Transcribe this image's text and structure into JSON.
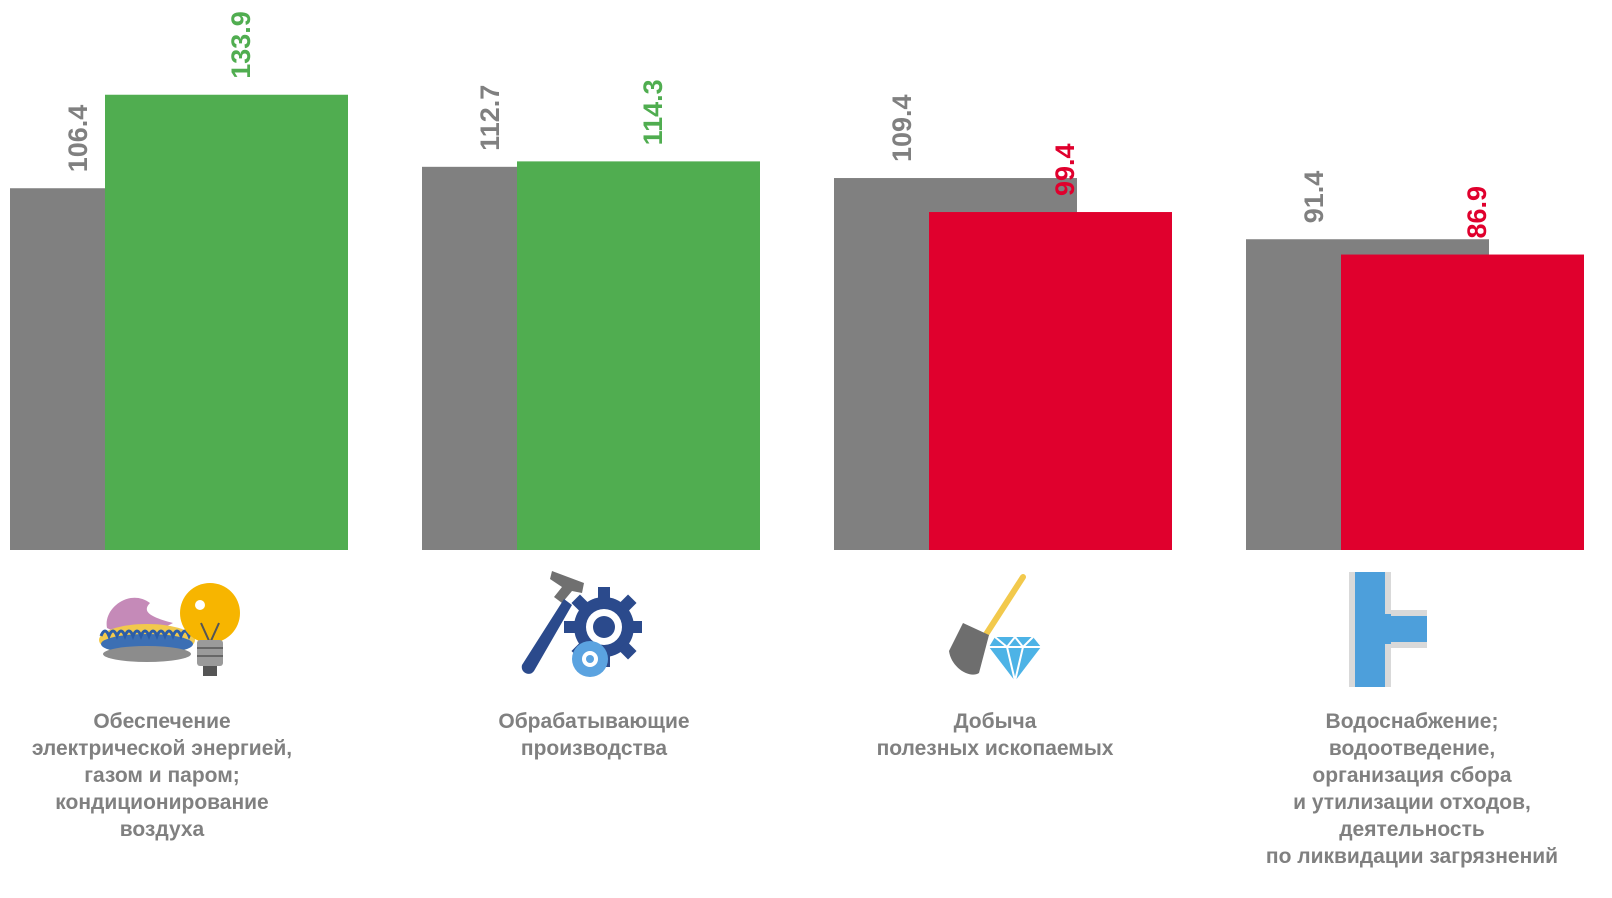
{
  "colors": {
    "base": "#808080",
    "increase": "#50AD50",
    "decrease": "#E0002D",
    "label_grey": "#808080",
    "label_green": "#50AD50",
    "label_red": "#E0002D"
  },
  "chart_data": {
    "type": "bar",
    "categories": [
      "Обеспечение\nэлектрической энергией,\nгазом и паром;\nкондиционирование\nвоздуха",
      "Обрабатывающие\nпроизводства",
      "Добыча\nполезных ископаемых",
      "Водоснабжение;\nводоотведение,\nорганизация сбора\nи утилизации отходов,\nдеятельность\nпо ликвидации загрязнений"
    ],
    "series": [
      {
        "values": [
          106.4,
          112.7,
          109.4,
          91.4
        ],
        "color": "#808080"
      },
      {
        "values": [
          133.9,
          114.3,
          99.4,
          86.9
        ],
        "colors": [
          "#50AD50",
          "#50AD50",
          "#E0002D",
          "#E0002D"
        ]
      }
    ],
    "data_labels": [
      [
        "106.4",
        "112.7",
        "109.4",
        "91.4"
      ],
      [
        "133.9",
        "114.3",
        "99.4",
        "86.9"
      ]
    ],
    "icons": [
      "gas-burner-lightbulb-icon",
      "hammer-gear-icon",
      "shovel-diamond-icon",
      "pipe-tee-icon"
    ],
    "ylim": [
      0,
      140
    ],
    "grid": false,
    "legend": "none"
  }
}
